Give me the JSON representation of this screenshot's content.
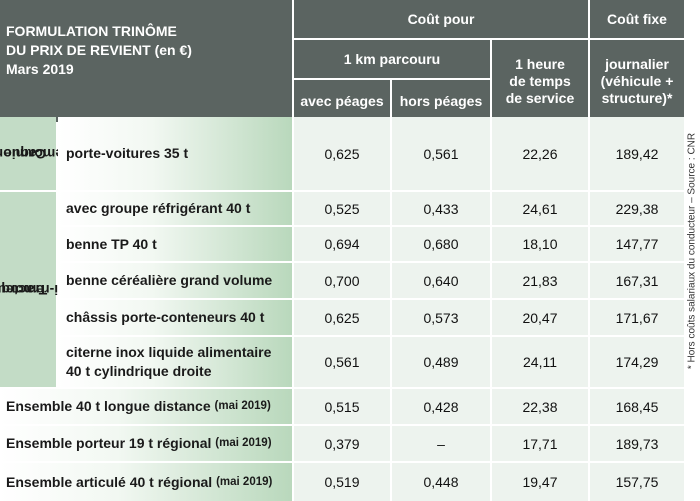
{
  "title": {
    "line1": "FORMULATION TRINÔME",
    "line2": "DU PRIX DE REVIENT (en €)",
    "line3": "Mars 2019"
  },
  "headers": {
    "cout_pour": "Coût pour",
    "cout_fixe": "Coût fixe",
    "km": "1 km parcouru",
    "heure": [
      "1 heure",
      "de temps",
      "de service"
    ],
    "journalier": [
      "journalier",
      "(véhicule +",
      "structure)*"
    ],
    "avec_peages": "avec péages",
    "hors_peages": "hors péages"
  },
  "groups": {
    "camion": [
      "Camion",
      "remorque"
    ],
    "tracteur": [
      "Tracteur",
      "semi-remorque"
    ]
  },
  "rows": [
    {
      "label": "porte-voitures 35 t",
      "avec": "0,625",
      "hors": "0,561",
      "heure": "22,26",
      "fixe": "189,42"
    },
    {
      "label": "avec groupe réfrigérant 40 t",
      "avec": "0,525",
      "hors": "0,433",
      "heure": "24,61",
      "fixe": "229,38"
    },
    {
      "label": "benne TP 40 t",
      "avec": "0,694",
      "hors": "0,680",
      "heure": "18,10",
      "fixe": "147,77"
    },
    {
      "label": "benne céréalière grand volume",
      "avec": "0,700",
      "hors": "0,640",
      "heure": "21,83",
      "fixe": "167,31"
    },
    {
      "label": "châssis porte-conteneurs 40 t",
      "avec": "0,625",
      "hors": "0,573",
      "heure": "20,47",
      "fixe": "171,67"
    },
    {
      "label_line1": "citerne inox liquide alimentaire",
      "label_line2": "40 t cylindrique droite",
      "avec": "0,561",
      "hors": "0,489",
      "heure": "24,11",
      "fixe": "174,29"
    },
    {
      "label": "Ensemble 40 t longue distance",
      "note": "(mai 2019)",
      "avec": "0,515",
      "hors": "0,428",
      "heure": "22,38",
      "fixe": "168,45"
    },
    {
      "label": "Ensemble porteur 19 t régional",
      "note": "(mai 2019)",
      "avec": "0,379",
      "hors": "–",
      "heure": "17,71",
      "fixe": "189,73"
    },
    {
      "label": "Ensemble articulé 40 t régional",
      "note": "(mai 2019)",
      "avec": "0,519",
      "hors": "0,448",
      "heure": "19,47",
      "fixe": "157,75"
    }
  ],
  "side_note": "* Hors coûts salariaux du conducteur – Source : CNR"
}
